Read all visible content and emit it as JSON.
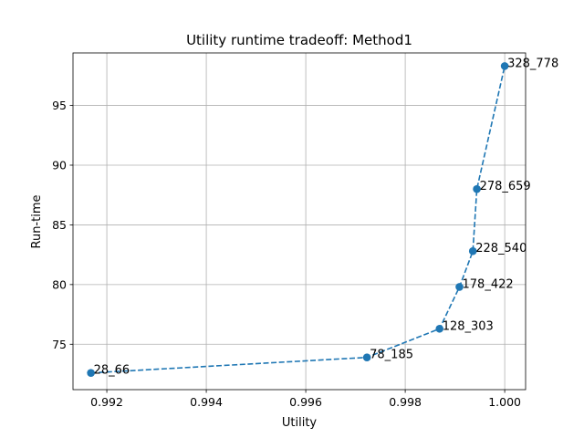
{
  "chart_data": {
    "type": "line",
    "title": "Utility runtime tradeoff: Method1",
    "xlabel": "Utility",
    "ylabel": "Run-time",
    "xlim": [
      0.99132,
      1.00042
    ],
    "ylim": [
      71.2,
      99.4
    ],
    "xticks": [
      0.992,
      0.994,
      0.996,
      0.998,
      1.0
    ],
    "xtick_labels": [
      "0.992",
      "0.994",
      "0.996",
      "0.998",
      "1.000"
    ],
    "yticks": [
      75,
      80,
      85,
      90,
      95
    ],
    "ytick_labels": [
      "75",
      "80",
      "85",
      "90",
      "95"
    ],
    "grid": true,
    "line_style": "dashed",
    "marker": "circle",
    "color": "#1f77b4",
    "series": [
      {
        "points": [
          {
            "x": 0.99168,
            "y": 72.6,
            "label": "28_66"
          },
          {
            "x": 0.99723,
            "y": 73.9,
            "label": "78_185"
          },
          {
            "x": 0.99869,
            "y": 76.3,
            "label": "128_303"
          },
          {
            "x": 0.99909,
            "y": 79.8,
            "label": "178_422"
          },
          {
            "x": 0.99936,
            "y": 82.8,
            "label": "228_540"
          },
          {
            "x": 0.99944,
            "y": 88.0,
            "label": "278_659"
          },
          {
            "x": 1.0,
            "y": 98.3,
            "label": "328_778"
          }
        ]
      }
    ]
  }
}
